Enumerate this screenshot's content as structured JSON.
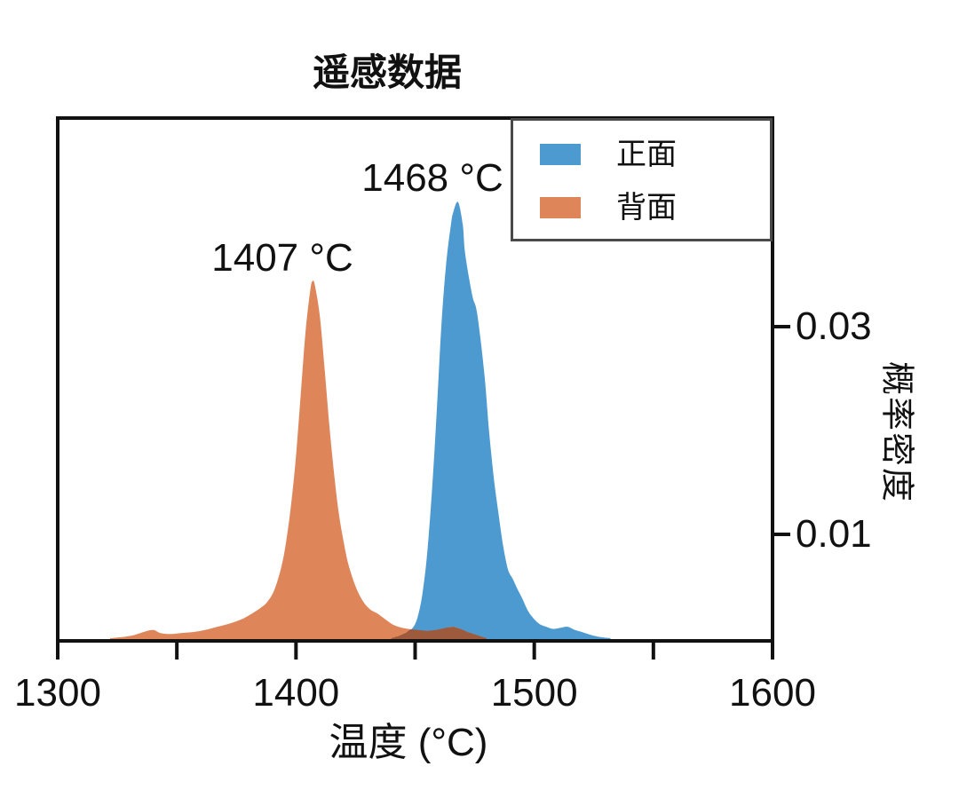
{
  "title": "遥感数据",
  "axes": {
    "x": {
      "label": "温度 (°C)",
      "range": [
        1300,
        1600
      ],
      "tick_positions": [
        1300,
        1350,
        1400,
        1450,
        1500,
        1550,
        1600
      ],
      "labeled_ticks": [
        {
          "value": 1300,
          "label": "1300"
        },
        {
          "value": 1400,
          "label": "1400"
        },
        {
          "value": 1500,
          "label": "1500"
        },
        {
          "value": 1600,
          "label": "1600"
        }
      ]
    },
    "y": {
      "label": "概率密度",
      "side": "right",
      "range": [
        0,
        0.05
      ],
      "labeled_ticks": [
        {
          "value": 0.03,
          "label": "0.03"
        },
        {
          "value": 0.01,
          "label": "0.01"
        }
      ]
    }
  },
  "legend": {
    "position": "upper right",
    "items": [
      {
        "label": "正面",
        "color": "#4d9ad0"
      },
      {
        "label": "背面",
        "color": "#de855a"
      }
    ]
  },
  "colors": {
    "front_blue": "#4d9ad0",
    "back_orange": "#de855a",
    "overlap_brown": "#9e5a3c",
    "axis": "#111111",
    "legend_border": "#4a4a4a",
    "text": "#111111"
  },
  "chart_data": {
    "type": "area",
    "title": "遥感数据",
    "xlabel": "温度 (°C)",
    "ylabel": "概率密度",
    "xlim": [
      1300,
      1600
    ],
    "ylim": [
      0,
      0.05
    ],
    "grid": false,
    "legend_position": "upper right",
    "series": [
      {
        "name": "正面",
        "color": "#4d9ad0",
        "peak_label": "1468 °C",
        "peak_x": 1468,
        "peak_density": 0.042,
        "points": [
          [
            1440,
            0
          ],
          [
            1443,
            0.0002
          ],
          [
            1446,
            0.0005
          ],
          [
            1449,
            0.001
          ],
          [
            1451,
            0.002
          ],
          [
            1453,
            0.0042
          ],
          [
            1455,
            0.008
          ],
          [
            1457,
            0.014
          ],
          [
            1459,
            0.0215
          ],
          [
            1461,
            0.03
          ],
          [
            1463,
            0.036
          ],
          [
            1465,
            0.0398
          ],
          [
            1466,
            0.041
          ],
          [
            1468,
            0.042
          ],
          [
            1470,
            0.0398
          ],
          [
            1471,
            0.037
          ],
          [
            1474,
            0.033
          ],
          [
            1476,
            0.0313
          ],
          [
            1479,
            0.0256
          ],
          [
            1481,
            0.02
          ],
          [
            1483,
            0.0155
          ],
          [
            1485,
            0.012
          ],
          [
            1487,
            0.0088
          ],
          [
            1489,
            0.0066
          ],
          [
            1491,
            0.0057
          ],
          [
            1493,
            0.0047
          ],
          [
            1495,
            0.0038
          ],
          [
            1497,
            0.0028
          ],
          [
            1499,
            0.0021
          ],
          [
            1502,
            0.0014
          ],
          [
            1505,
            0.0011
          ],
          [
            1508,
            0.0009
          ],
          [
            1511,
            0.001
          ],
          [
            1514,
            0.0011
          ],
          [
            1517,
            0.0008
          ],
          [
            1520,
            0.0006
          ],
          [
            1524,
            0.0003
          ],
          [
            1528,
            0.0001
          ],
          [
            1532,
            0
          ]
        ]
      },
      {
        "name": "背面",
        "color": "#de855a",
        "peak_label": "1407 °C",
        "peak_x": 1407,
        "peak_density": 0.0344,
        "points": [
          [
            1322,
            0
          ],
          [
            1327,
            0.0001
          ],
          [
            1332,
            0.0003
          ],
          [
            1336,
            0.0006
          ],
          [
            1340,
            0.0008
          ],
          [
            1343,
            0.0005
          ],
          [
            1347,
            0.0004
          ],
          [
            1352,
            0.0005
          ],
          [
            1357,
            0.0006
          ],
          [
            1362,
            0.0008
          ],
          [
            1367,
            0.0011
          ],
          [
            1372,
            0.0014
          ],
          [
            1377,
            0.0018
          ],
          [
            1381,
            0.0023
          ],
          [
            1385,
            0.0029
          ],
          [
            1388,
            0.0035
          ],
          [
            1391,
            0.0047
          ],
          [
            1394,
            0.007
          ],
          [
            1396,
            0.0095
          ],
          [
            1398,
            0.013
          ],
          [
            1400,
            0.0175
          ],
          [
            1402,
            0.0235
          ],
          [
            1404,
            0.0295
          ],
          [
            1406,
            0.0335
          ],
          [
            1407,
            0.0344
          ],
          [
            1408,
            0.0339
          ],
          [
            1410,
            0.031
          ],
          [
            1412,
            0.026
          ],
          [
            1414,
            0.0205
          ],
          [
            1416,
            0.0158
          ],
          [
            1418,
            0.012
          ],
          [
            1420,
            0.0093
          ],
          [
            1422,
            0.0071
          ],
          [
            1425,
            0.005
          ],
          [
            1428,
            0.0036
          ],
          [
            1431,
            0.0028
          ],
          [
            1434,
            0.0024
          ],
          [
            1437,
            0.0019
          ],
          [
            1440,
            0.0014
          ],
          [
            1443,
            0.0011
          ],
          [
            1447,
            0.0009
          ],
          [
            1451,
            0.0008
          ],
          [
            1455,
            0.0007
          ],
          [
            1459,
            0.0008
          ],
          [
            1463,
            0.001
          ],
          [
            1466,
            0.0011
          ],
          [
            1469,
            0.0009
          ],
          [
            1472,
            0.0006
          ],
          [
            1476,
            0.0003
          ],
          [
            1480,
            0
          ]
        ]
      }
    ],
    "annotations": [
      {
        "text": "1468 °C",
        "series": "正面"
      },
      {
        "text": "1407 °C",
        "series": "背面"
      }
    ]
  }
}
